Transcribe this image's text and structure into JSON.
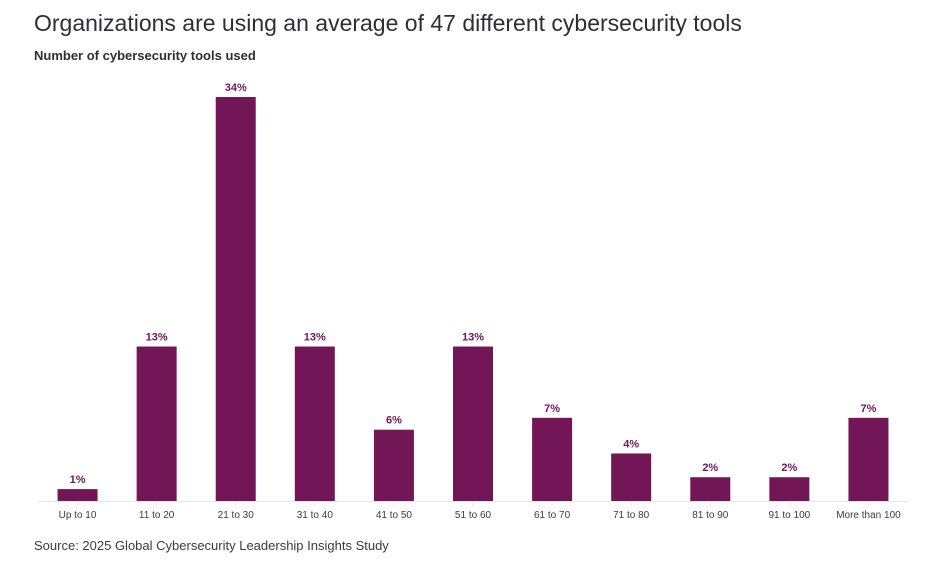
{
  "chart_data": {
    "type": "bar",
    "title": "Organizations are using an average of 47 different cybersecurity tools",
    "subtitle": "Number of cybersecurity tools used",
    "categories": [
      "Up to 10",
      "11 to 20",
      "21 to 30",
      "31 to 40",
      "41 to 50",
      "51 to 60",
      "61 to 70",
      "71 to 80",
      "81 to 90",
      "91 to 100",
      "More than 100"
    ],
    "values": [
      1,
      13,
      34,
      13,
      6,
      13,
      7,
      4,
      2,
      2,
      7
    ],
    "data_labels": [
      "1%",
      "13%",
      "34%",
      "13%",
      "6%",
      "13%",
      "7%",
      "4%",
      "2%",
      "2%",
      "7%"
    ],
    "xlabel": "",
    "ylabel": "",
    "ylim": [
      0,
      34
    ],
    "grid": false,
    "bar_color": "#721657",
    "source": "Source: 2025 Global Cybersecurity Leadership Insights Study"
  }
}
